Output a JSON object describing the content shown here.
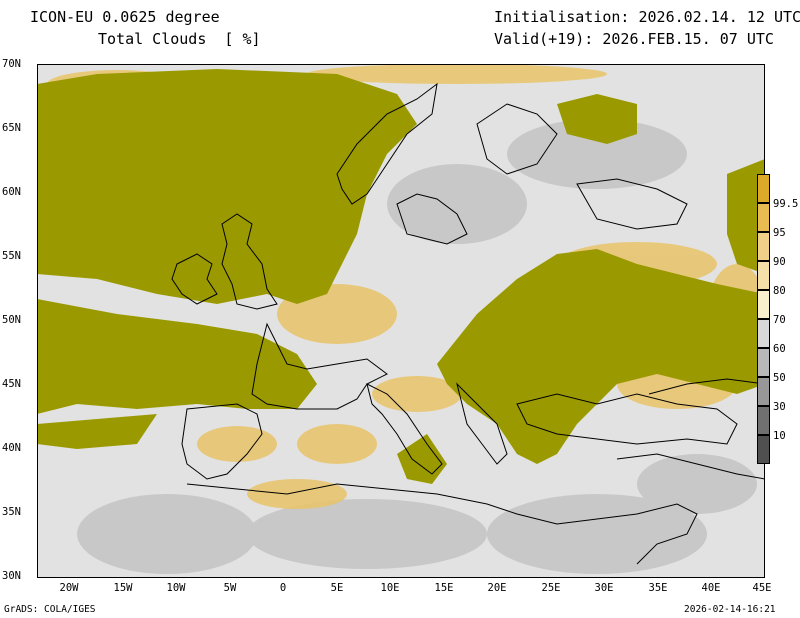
{
  "header": {
    "model": "ICON-EU 0.0625 degree",
    "parameter": "Total Clouds  [ %]",
    "initialisation": "Initialisation: 2026.02.14. 12 UTC",
    "valid": "Valid(+19): 2026.FEB.15. 07 UTC"
  },
  "map": {
    "lat_labels": [
      "70N",
      "65N",
      "60N",
      "55N",
      "50N",
      "45N",
      "40N",
      "35N",
      "30N"
    ],
    "lon_labels": [
      "20W",
      "15W",
      "10W",
      "5W",
      "0",
      "5E",
      "10E",
      "15E",
      "20E",
      "25E",
      "30E",
      "35E",
      "40E",
      "45E"
    ],
    "extent": {
      "lon": [
        -23,
        45
      ],
      "lat": [
        30,
        70
      ]
    },
    "colors": {
      "full_cloud": "#9a9a00",
      "clear": "#ffffff",
      "coast": "#000000"
    }
  },
  "colorbar": {
    "labels": [
      "99.5",
      "95",
      "90",
      "80",
      "70",
      "60",
      "50",
      "30",
      "10"
    ],
    "colors": [
      "#dcaa28",
      "#e8bc50",
      "#f0d088",
      "#f4e0a8",
      "#f8f0cc",
      "#d8d8d8",
      "#b8b8b8",
      "#989898",
      "#707070",
      "#505050"
    ]
  },
  "footer": {
    "left": "GrADS: COLA/IGES",
    "right": "2026-02-14-16:21"
  }
}
